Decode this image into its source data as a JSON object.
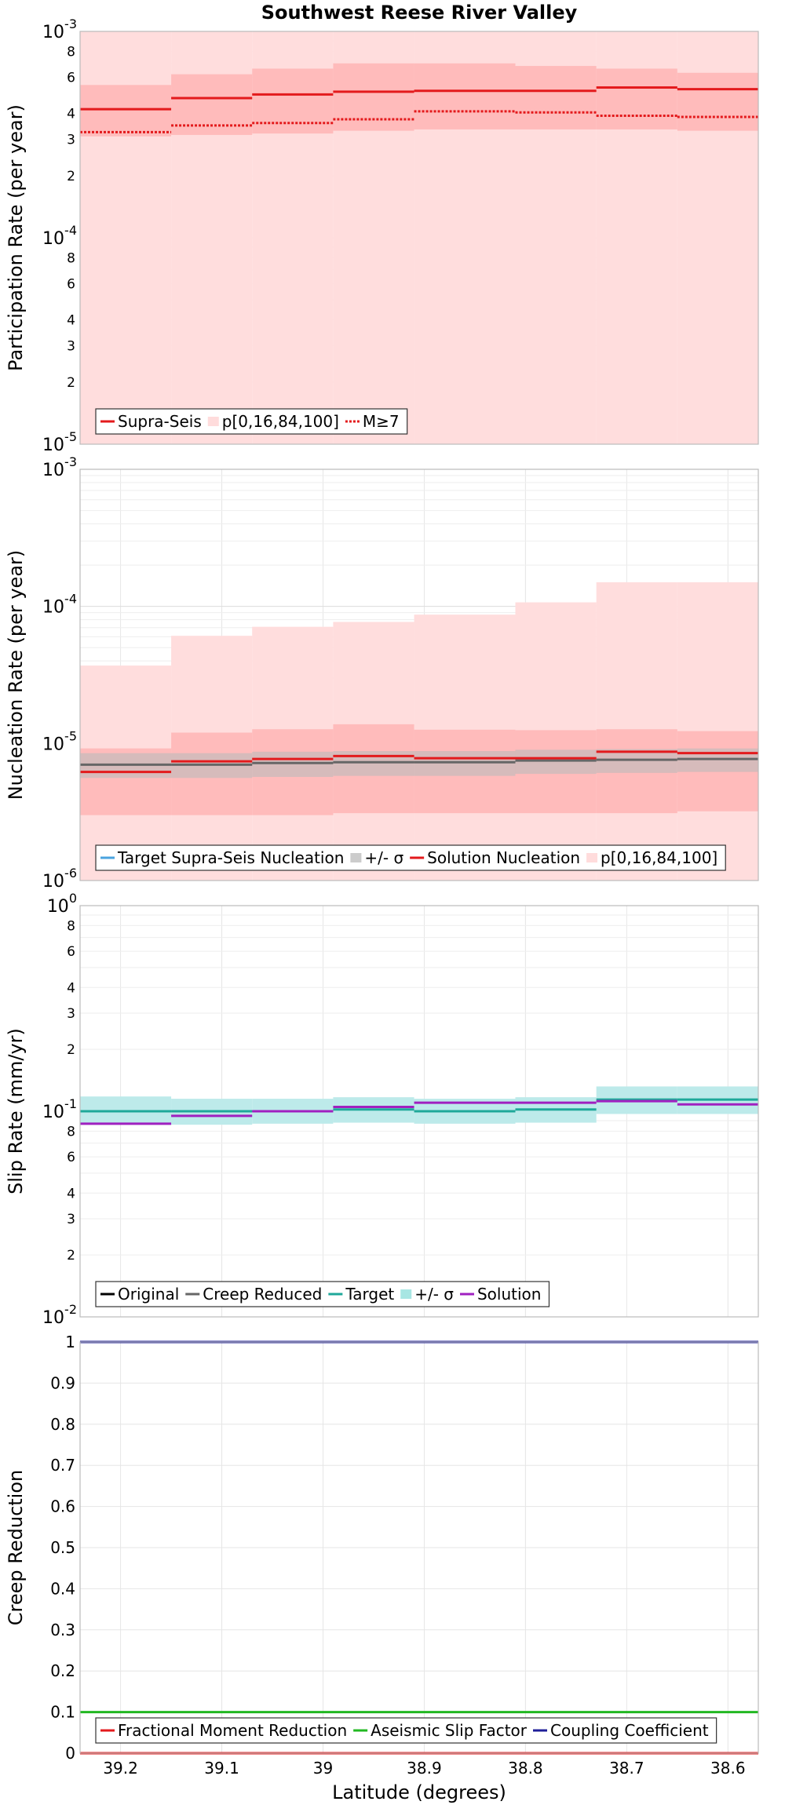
{
  "chart_data": [
    {
      "type": "line",
      "title": "Southwest Reese River Valley",
      "ylabel": "Participation Rate (per year)",
      "xlabel": "",
      "yscale": "log",
      "ylim": [
        1e-05,
        0.001
      ],
      "xlim": [
        39.24,
        38.57
      ],
      "x_reversed": true,
      "grid": true,
      "legend_position": "bottom-left",
      "y_major_ticks": [
        {
          "base": "10",
          "exp": "-5",
          "v": 1e-05
        },
        {
          "base": "10",
          "exp": "-4",
          "v": 0.0001
        },
        {
          "base": "10",
          "exp": "-3",
          "v": 0.001
        }
      ],
      "y_minor_ticks": [
        "2",
        "3",
        "4",
        "6",
        "8"
      ],
      "x_tick_labels": [],
      "legend": [
        {
          "label": "Supra-Seis",
          "color": "#e31a1c",
          "style": "line"
        },
        {
          "label": "p[0,16,84,100]",
          "color": "#ffdcdc",
          "style": "box"
        },
        {
          "label": "M≥7",
          "color": "#e31a1c",
          "style": "dotted"
        }
      ],
      "x_edges": [
        39.24,
        39.15,
        39.07,
        38.99,
        38.91,
        38.81,
        38.73,
        38.65,
        38.57
      ],
      "series": [
        {
          "name": "Supra-Seis",
          "color": "#e31a1c",
          "style": "solid",
          "values": [
            0.00042,
            0.000475,
            0.000495,
            0.00051,
            0.000515,
            0.000515,
            0.000535,
            0.000525,
            0.000465
          ]
        },
        {
          "name": "M≥7",
          "color": "#e31a1c",
          "style": "dotted",
          "values": [
            0.000325,
            0.00035,
            0.00036,
            0.000375,
            0.00041,
            0.000405,
            0.00039,
            0.000385,
            0.00035
          ]
        }
      ],
      "bands": [
        {
          "name": "p[0,100]",
          "color": "#ffdddd",
          "low": [
            1e-05,
            1e-05,
            1e-05,
            1e-05,
            1e-05,
            1e-05,
            1e-05,
            1e-05,
            1e-05
          ],
          "high": [
            0.0022,
            0.00225,
            0.0028,
            0.0031,
            0.0035,
            0.0041,
            0.0054,
            0.0054,
            0.0054
          ]
        },
        {
          "name": "p[16,84]",
          "color": "#ffbbbb",
          "low": [
            0.00031,
            0.000315,
            0.00032,
            0.00033,
            0.000335,
            0.000335,
            0.000335,
            0.00033,
            0.0003
          ],
          "high": [
            0.00055,
            0.00062,
            0.00066,
            0.0007,
            0.0007,
            0.00068,
            0.00066,
            0.00063,
            0.00055
          ]
        }
      ]
    },
    {
      "type": "line",
      "title": "",
      "ylabel": "Nucleation Rate (per year)",
      "xlabel": "",
      "yscale": "log",
      "ylim": [
        1e-06,
        0.001
      ],
      "xlim": [
        39.24,
        38.57
      ],
      "x_reversed": true,
      "grid": true,
      "legend_position": "bottom-left",
      "y_major_ticks": [
        {
          "base": "10",
          "exp": "-6",
          "v": 1e-06
        },
        {
          "base": "10",
          "exp": "-5",
          "v": 1e-05
        },
        {
          "base": "10",
          "exp": "-4",
          "v": 0.0001
        },
        {
          "base": "10",
          "exp": "-3",
          "v": 0.001
        }
      ],
      "y_minor_ticks": [],
      "x_tick_labels": [],
      "legend": [
        {
          "label": "Target Supra-Seis Nucleation",
          "color": "#4aa3df",
          "style": "line"
        },
        {
          "label": "+/- σ",
          "color": "#cccccc",
          "style": "box"
        },
        {
          "label": "Solution Nucleation",
          "color": "#e31a1c",
          "style": "line"
        },
        {
          "label": "p[0,16,84,100]",
          "color": "#ffdcdc",
          "style": "box"
        }
      ],
      "x_edges": [
        39.24,
        39.15,
        39.07,
        38.99,
        38.91,
        38.81,
        38.73,
        38.65,
        38.57
      ],
      "series": [
        {
          "name": "Target Supra-Seis Nucleation",
          "color": "#666666",
          "style": "solid",
          "values": [
            7e-06,
            7e-06,
            7.2e-06,
            7.3e-06,
            7.3e-06,
            7.5e-06,
            7.6e-06,
            7.7e-06,
            7.8e-06
          ]
        },
        {
          "name": "Solution Nucleation",
          "color": "#e31a1c",
          "style": "solid",
          "values": [
            6.2e-06,
            7.4e-06,
            7.7e-06,
            8.1e-06,
            7.8e-06,
            7.8e-06,
            8.7e-06,
            8.5e-06,
            7.3e-06
          ]
        }
      ],
      "bands": [
        {
          "name": "p[0,100]",
          "color": "#ffdddd",
          "low": [
            1e-06,
            1e-06,
            1e-06,
            1e-06,
            1e-06,
            1e-06,
            1e-06,
            1e-06,
            1e-06
          ],
          "high": [
            3.7e-05,
            6.1e-05,
            7.1e-05,
            7.7e-05,
            8.7e-05,
            0.000107,
            0.00015,
            0.00015,
            0.00015
          ]
        },
        {
          "name": "p[16,84]",
          "color": "#ffbbbb",
          "low": [
            3e-06,
            3e-06,
            3e-06,
            3.1e-06,
            3.1e-06,
            3.1e-06,
            3.1e-06,
            3.2e-06,
            2.8e-06
          ],
          "high": [
            9.2e-06,
            1.2e-05,
            1.27e-05,
            1.38e-05,
            1.26e-05,
            1.25e-05,
            1.27e-05,
            1.23e-05,
            9.5e-06
          ]
        },
        {
          "name": "+/- σ",
          "color": "#bbbbbb",
          "opacity": 0.6,
          "low": [
            5.6e-06,
            5.6e-06,
            5.7e-06,
            5.8e-06,
            5.8e-06,
            6e-06,
            6.1e-06,
            6.2e-06,
            6.3e-06
          ],
          "high": [
            8.5e-06,
            8.5e-06,
            8.7e-06,
            8.8e-06,
            8.8e-06,
            9e-06,
            9.1e-06,
            9.2e-06,
            9.3e-06
          ]
        }
      ]
    },
    {
      "type": "line",
      "title": "",
      "ylabel": "Slip Rate (mm/yr)",
      "xlabel": "",
      "yscale": "log",
      "ylim": [
        0.01,
        1
      ],
      "xlim": [
        39.24,
        38.57
      ],
      "x_reversed": true,
      "grid": true,
      "legend_position": "bottom-left",
      "y_major_ticks": [
        {
          "base": "10",
          "exp": "-2",
          "v": 0.01
        },
        {
          "base": "10",
          "exp": "-1",
          "v": 0.1
        },
        {
          "base": "10",
          "exp": "0",
          "v": 1
        }
      ],
      "y_minor_ticks": [
        "2",
        "3",
        "4",
        "6",
        "8"
      ],
      "x_tick_labels": [],
      "legend": [
        {
          "label": "Original",
          "color": "#000000",
          "style": "line"
        },
        {
          "label": "Creep Reduced",
          "color": "#666666",
          "style": "line"
        },
        {
          "label": "Target",
          "color": "#1fa89a",
          "style": "line"
        },
        {
          "label": "+/- σ",
          "color": "#a8e6e3",
          "style": "box"
        },
        {
          "label": "Solution",
          "color": "#a020c0",
          "style": "line"
        }
      ],
      "x_edges": [
        39.24,
        39.15,
        39.07,
        38.99,
        38.91,
        38.81,
        38.73,
        38.65,
        38.57
      ],
      "series": [
        {
          "name": "Target",
          "color": "#1fa89a",
          "style": "solid",
          "values": [
            0.1,
            0.1,
            0.1,
            0.102,
            0.1,
            0.102,
            0.114,
            0.114,
            0.115
          ]
        },
        {
          "name": "Solution",
          "color": "#a020c0",
          "style": "solid",
          "values": [
            0.087,
            0.095,
            0.1,
            0.105,
            0.11,
            0.11,
            0.112,
            0.108,
            0.093
          ]
        }
      ],
      "bands": [
        {
          "name": "+/- σ",
          "color": "#bdeaea",
          "low": [
            0.086,
            0.086,
            0.087,
            0.088,
            0.087,
            0.088,
            0.097,
            0.097,
            0.098
          ],
          "high": [
            0.118,
            0.115,
            0.115,
            0.117,
            0.115,
            0.117,
            0.132,
            0.132,
            0.133
          ]
        }
      ]
    },
    {
      "type": "line",
      "title": "",
      "ylabel": "Creep Reduction",
      "xlabel": "Latitude (degrees)",
      "yscale": "linear",
      "ylim": [
        0,
        1
      ],
      "xlim": [
        39.24,
        38.57
      ],
      "x_reversed": true,
      "grid": true,
      "legend_position": "bottom-left",
      "y_linear_ticks": [
        "0",
        "0.1",
        "0.2",
        "0.3",
        "0.4",
        "0.5",
        "0.6",
        "0.7",
        "0.8",
        "0.9",
        "1"
      ],
      "x_tick_labels": [
        "39.2",
        "39.1",
        "39",
        "38.9",
        "38.8",
        "38.7",
        "38.6"
      ],
      "legend": [
        {
          "label": "Fractional Moment Reduction",
          "color": "#e31a1c",
          "style": "line"
        },
        {
          "label": "Aseismic Slip Factor",
          "color": "#22b822",
          "style": "line"
        },
        {
          "label": "Coupling Coefficient",
          "color": "#1f1f99",
          "style": "line"
        }
      ],
      "x_edges": [
        39.24,
        38.57
      ],
      "series": [
        {
          "name": "Fractional Moment Reduction",
          "color": "#e31a1c",
          "style": "solid",
          "values": [
            0
          ]
        },
        {
          "name": "Aseismic Slip Factor",
          "color": "#22b822",
          "style": "solid",
          "values": [
            0.1
          ]
        },
        {
          "name": "Coupling Coefficient",
          "color": "#1f1f99",
          "style": "solid",
          "values": [
            1
          ]
        }
      ],
      "bands": []
    }
  ]
}
